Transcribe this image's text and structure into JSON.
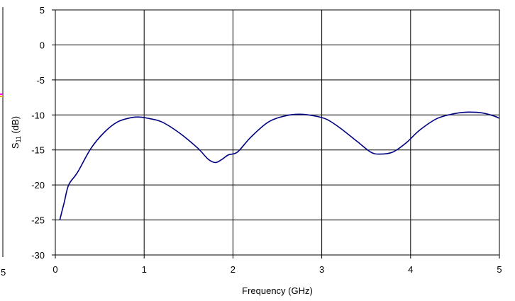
{
  "chart_data": {
    "type": "line",
    "xlabel": "Frequency (GHz)",
    "ylabel": {
      "main": "S",
      "sub": "11",
      "unit": " (dB)"
    },
    "xlim": [
      0,
      5
    ],
    "ylim": [
      -30,
      5
    ],
    "xticks": [
      0,
      1,
      2,
      3,
      4,
      5
    ],
    "yticks": [
      5,
      0,
      -5,
      -10,
      -15,
      -20,
      -25,
      -30
    ],
    "grid": true,
    "legend": "none",
    "series": [
      {
        "color": "#000080",
        "x": [
          0.05,
          0.1,
          0.15,
          0.25,
          0.4,
          0.55,
          0.7,
          0.85,
          0.95,
          1.05,
          1.2,
          1.4,
          1.6,
          1.72,
          1.8,
          1.87,
          1.95,
          2.05,
          2.2,
          2.4,
          2.6,
          2.75,
          2.9,
          3.05,
          3.2,
          3.4,
          3.55,
          3.65,
          3.8,
          3.95,
          4.1,
          4.3,
          4.5,
          4.65,
          4.8,
          4.95,
          5.0
        ],
        "y": [
          -25.0,
          -22.5,
          -20.0,
          -18.2,
          -14.8,
          -12.5,
          -11.0,
          -10.4,
          -10.3,
          -10.5,
          -11.0,
          -12.6,
          -14.7,
          -16.3,
          -16.8,
          -16.4,
          -15.7,
          -15.3,
          -13.2,
          -11.0,
          -10.1,
          -9.9,
          -10.1,
          -10.6,
          -11.8,
          -13.8,
          -15.3,
          -15.6,
          -15.3,
          -14.0,
          -12.2,
          -10.5,
          -9.8,
          -9.6,
          -9.7,
          -10.2,
          -10.5
        ]
      }
    ]
  },
  "left_partial": {
    "corner_tick": "5",
    "trace_colors": [
      "#ff00ff",
      "#ffa500"
    ]
  }
}
